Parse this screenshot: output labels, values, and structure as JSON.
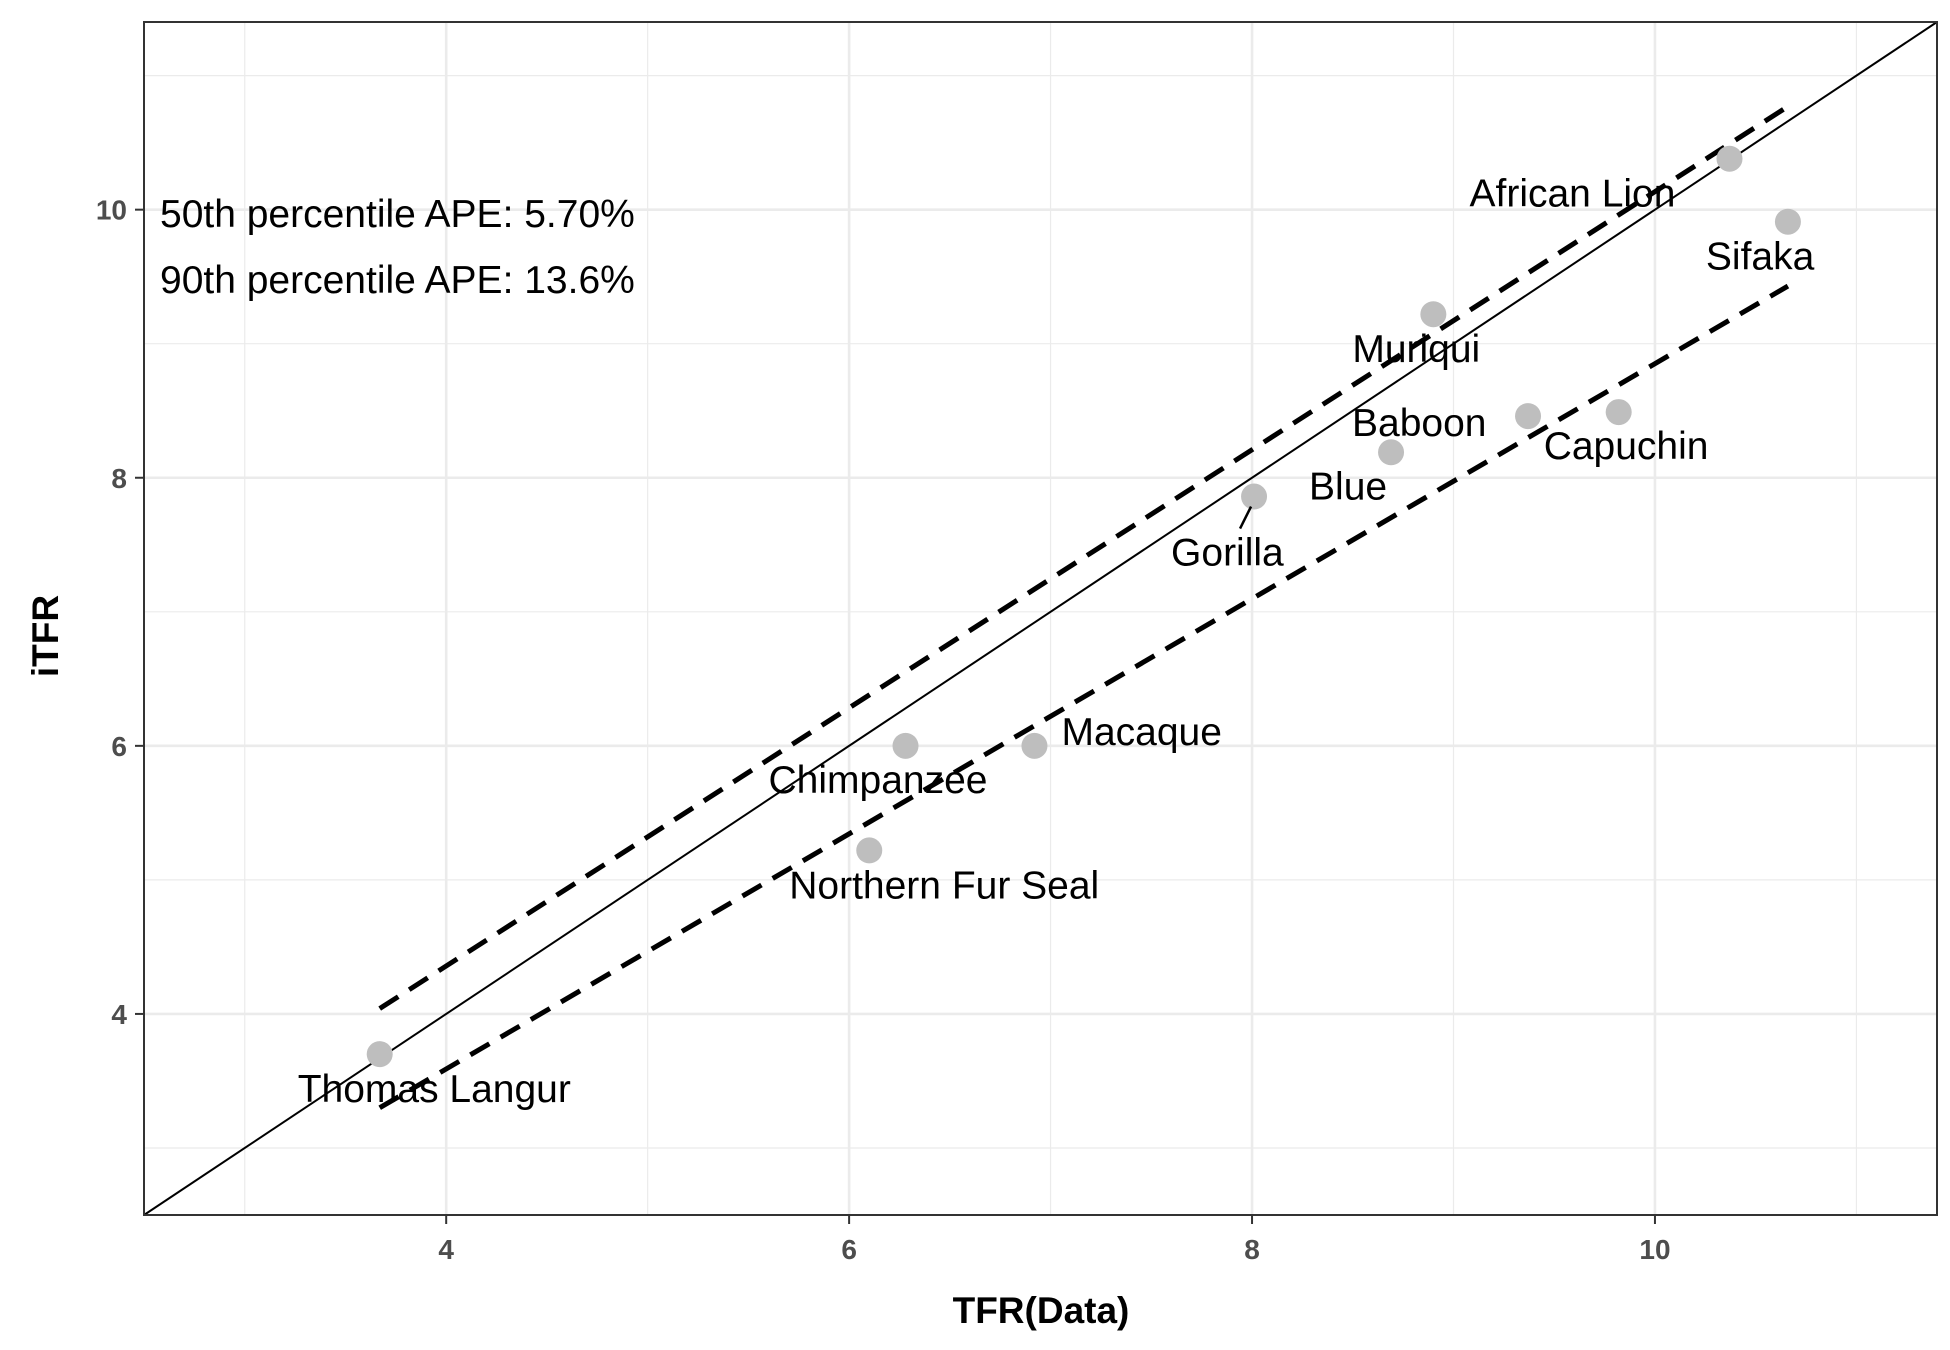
{
  "chart_data": {
    "type": "scatter",
    "xlabel": "TFR(Data)",
    "ylabel": "iTFR",
    "xlim": [
      2.5,
      11.4
    ],
    "ylim": [
      2.5,
      11.4
    ],
    "x_ticks": [
      4,
      6,
      8,
      10
    ],
    "y_ticks": [
      4,
      6,
      8,
      10
    ],
    "x_tick_labels": [
      "4",
      "6",
      "8",
      "10"
    ],
    "y_tick_labels": [
      "4",
      "6",
      "8",
      "10"
    ],
    "grid": true,
    "theme": "bw",
    "annotations": [
      "50th percentile APE: 5.70%",
      "90th percentile APE: 13.6%"
    ],
    "points": [
      {
        "label": "Thomas Langur",
        "x": 3.67,
        "y": 3.7
      },
      {
        "label": "Northern Fur Seal",
        "x": 6.1,
        "y": 5.22
      },
      {
        "label": "Chimpanzee",
        "x": 6.28,
        "y": 6.0
      },
      {
        "label": "Macaque",
        "x": 6.92,
        "y": 6.0
      },
      {
        "label": "Gorilla",
        "x": 8.01,
        "y": 7.86
      },
      {
        "label": "Blue",
        "x": 8.69,
        "y": 8.19
      },
      {
        "label": "Muriqui",
        "x": 8.9,
        "y": 9.22
      },
      {
        "label": "Baboon",
        "x": 9.37,
        "y": 8.46
      },
      {
        "label": "Capuchin",
        "x": 9.82,
        "y": 8.49
      },
      {
        "label": "African Lion",
        "x": 10.37,
        "y": 10.38
      },
      {
        "label": "Sifaka",
        "x": 10.66,
        "y": 9.91
      }
    ],
    "reference_lines": [
      {
        "name": "identity",
        "style": "solid",
        "x": [
          2.5,
          11.4
        ],
        "y": [
          2.5,
          11.4
        ]
      },
      {
        "name": "upper band",
        "style": "dashed",
        "x": [
          3.67,
          10.66
        ],
        "y": [
          4.04,
          10.77
        ]
      },
      {
        "name": "lower band",
        "style": "dashed",
        "x": [
          3.67,
          10.66
        ],
        "y": [
          3.3,
          9.43
        ]
      }
    ],
    "point_color": "#bebebe",
    "line_color": "#000000",
    "grid_color": "#ebebeb",
    "panel_border_color": "#333333"
  }
}
